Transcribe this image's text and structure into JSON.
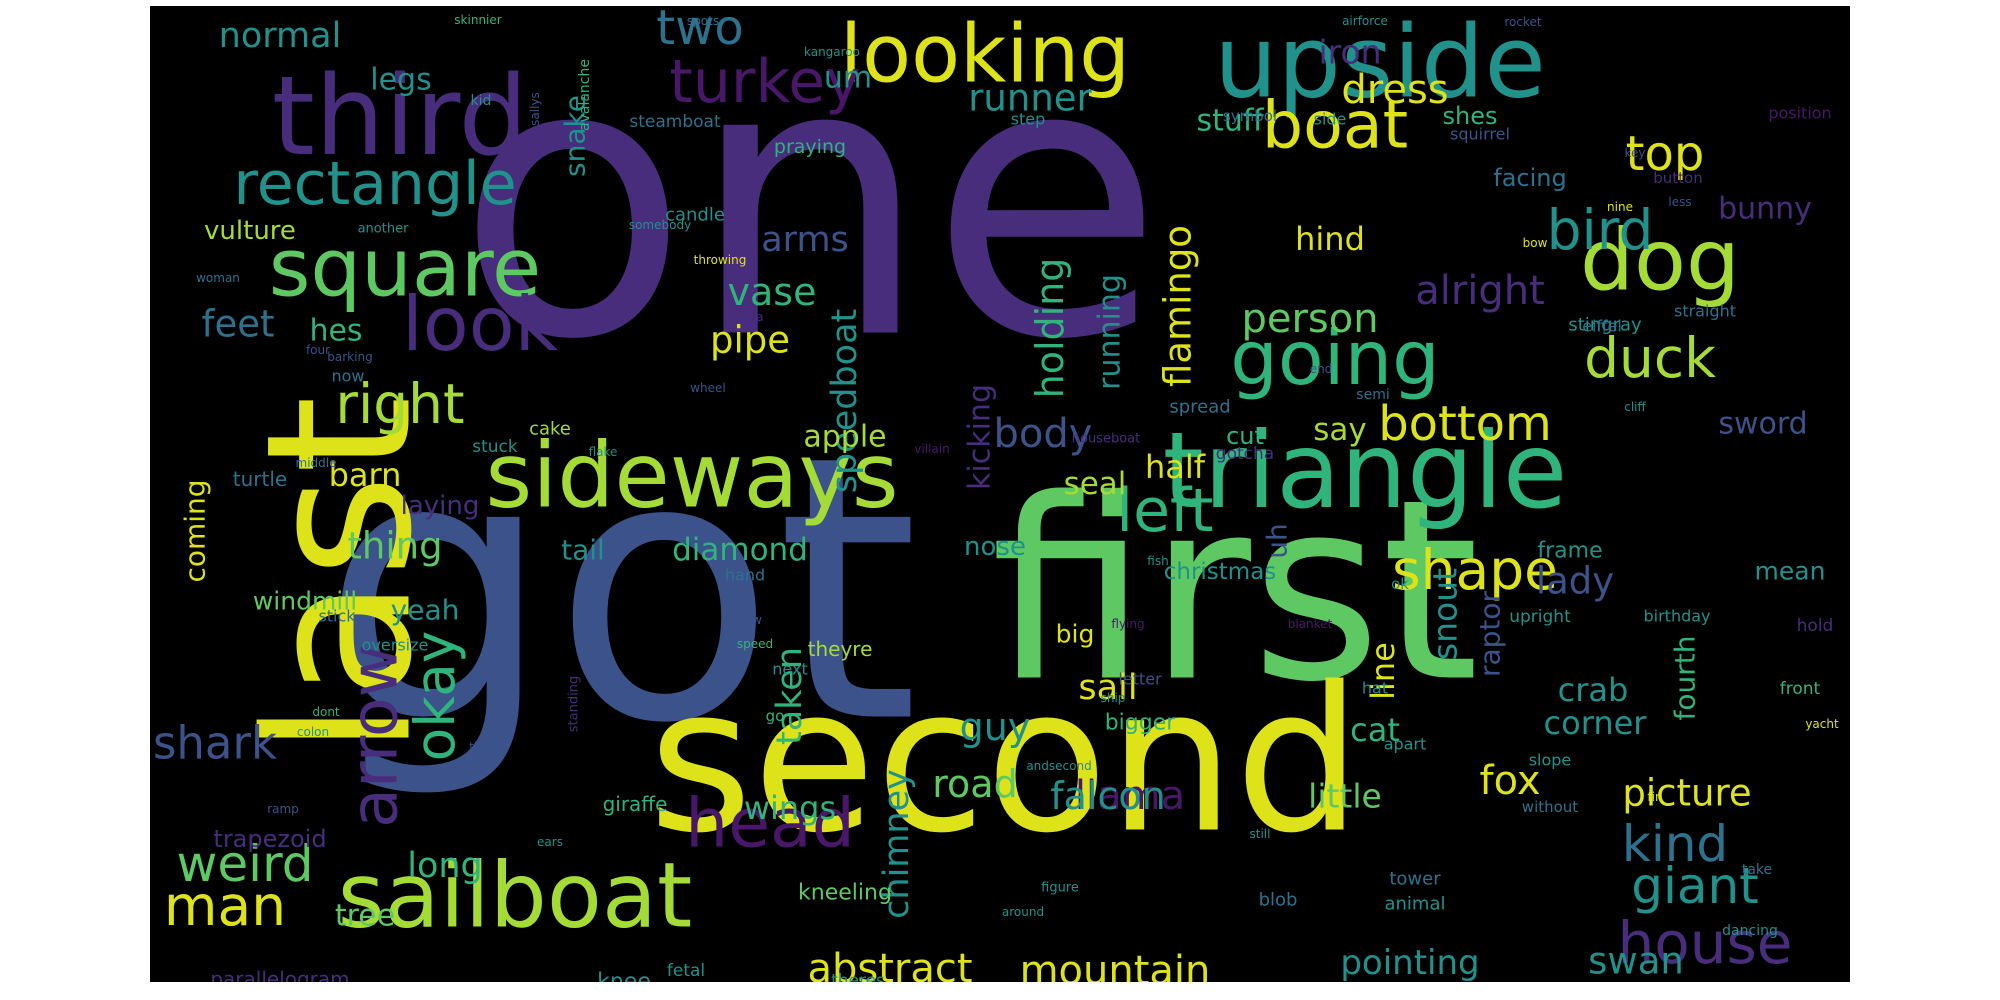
{
  "title": "",
  "palette": {
    "background": "#000000",
    "page": "#ffffff",
    "yellow": "#dde318",
    "lime": "#a5db36",
    "green": "#5ec962",
    "teal_green": "#2fb47c",
    "teal": "#21918c",
    "cyan_blue": "#2c728e",
    "blue": "#3b528b",
    "indigo": "#472d7b",
    "violet": "#481769"
  },
  "words": [
    {
      "text": "one",
      "color": "indigo",
      "weight": 1.0
    },
    {
      "text": "got",
      "color": "blue",
      "weight": 0.93
    },
    {
      "text": "first",
      "color": "green",
      "weight": 0.74
    },
    {
      "text": "second",
      "color": "yellow",
      "weight": 0.66
    },
    {
      "text": "last",
      "color": "yellow",
      "weight": 0.55
    },
    {
      "text": "triangle",
      "color": "teal_green",
      "weight": 0.53
    },
    {
      "text": "upside",
      "color": "teal",
      "weight": 0.5
    },
    {
      "text": "sideways",
      "color": "lime",
      "weight": 0.46
    },
    {
      "text": "third",
      "color": "indigo",
      "weight": 0.46
    },
    {
      "text": "sailboat",
      "color": "lime",
      "weight": 0.43
    },
    {
      "text": "looking",
      "color": "yellow",
      "weight": 0.42
    },
    {
      "text": "square",
      "color": "green",
      "weight": 0.41
    },
    {
      "text": "dog",
      "color": "lime",
      "weight": 0.38
    },
    {
      "text": "rectangle",
      "color": "teal",
      "weight": 0.32
    },
    {
      "text": "look",
      "color": "indigo",
      "weight": 0.32
    },
    {
      "text": "boat",
      "color": "yellow",
      "weight": 0.32
    },
    {
      "text": "going",
      "color": "teal_green",
      "weight": 0.32
    },
    {
      "text": "arrow",
      "color": "indigo",
      "weight": 0.3
    },
    {
      "text": "left",
      "color": "teal_green",
      "weight": 0.3
    },
    {
      "text": "head",
      "color": "violet",
      "weight": 0.3
    },
    {
      "text": "house",
      "color": "indigo",
      "weight": 0.28
    },
    {
      "text": "turkey",
      "color": "violet",
      "weight": 0.28
    },
    {
      "text": "shape",
      "color": "yellow",
      "weight": 0.27
    },
    {
      "text": "okay",
      "color": "teal_green",
      "weight": 0.27
    },
    {
      "text": "right",
      "color": "lime",
      "weight": 0.27
    },
    {
      "text": "bird",
      "color": "teal",
      "weight": 0.27
    },
    {
      "text": "duck",
      "color": "lime",
      "weight": 0.27
    },
    {
      "text": "man",
      "color": "yellow",
      "weight": 0.27
    },
    {
      "text": "weird",
      "color": "green",
      "weight": 0.26
    },
    {
      "text": "kind",
      "color": "cyan_blue",
      "weight": 0.26
    },
    {
      "text": "giant",
      "color": "teal",
      "weight": 0.25
    },
    {
      "text": "bottom",
      "color": "yellow",
      "weight": 0.24
    },
    {
      "text": "shark",
      "color": "blue",
      "weight": 0.23
    },
    {
      "text": "top",
      "color": "yellow",
      "weight": 0.23
    },
    {
      "text": "two",
      "color": "cyan_blue",
      "weight": 0.22
    },
    {
      "text": "person",
      "color": "green",
      "weight": 0.21
    },
    {
      "text": "speedboat",
      "color": "teal",
      "weight": 0.21
    },
    {
      "text": "llama",
      "color": "violet",
      "weight": 0.21
    },
    {
      "text": "abstract",
      "color": "yellow",
      "weight": 0.2
    },
    {
      "text": "mountain",
      "color": "yellow",
      "weight": 0.2
    },
    {
      "text": "dress",
      "color": "yellow",
      "weight": 0.2
    },
    {
      "text": "chimney",
      "color": "teal",
      "weight": 0.2
    },
    {
      "text": "holding",
      "color": "teal_green",
      "weight": 0.2
    },
    {
      "text": "falcon",
      "color": "teal",
      "weight": 0.2
    },
    {
      "text": "road",
      "color": "green",
      "weight": 0.2
    },
    {
      "text": "fox",
      "color": "yellow",
      "weight": 0.19
    },
    {
      "text": "vase",
      "color": "teal_green",
      "weight": 0.19
    },
    {
      "text": "alright",
      "color": "indigo",
      "weight": 0.19
    },
    {
      "text": "body",
      "color": "blue",
      "weight": 0.19
    },
    {
      "text": "picture",
      "color": "yellow",
      "weight": 0.18
    },
    {
      "text": "pointing",
      "color": "teal",
      "weight": 0.18
    },
    {
      "text": "flamingo",
      "color": "yellow",
      "weight": 0.18
    },
    {
      "text": "lady",
      "color": "blue",
      "weight": 0.18
    },
    {
      "text": "runner",
      "color": "teal",
      "weight": 0.18
    },
    {
      "text": "normal",
      "color": "teal",
      "weight": 0.18
    },
    {
      "text": "taken",
      "color": "teal_green",
      "weight": 0.17
    },
    {
      "text": "iron",
      "color": "indigo",
      "weight": 0.17
    },
    {
      "text": "little",
      "color": "green",
      "weight": 0.17
    },
    {
      "text": "pipe",
      "color": "yellow",
      "weight": 0.17
    },
    {
      "text": "guy",
      "color": "teal",
      "weight": 0.17
    },
    {
      "text": "swan",
      "color": "teal",
      "weight": 0.17
    },
    {
      "text": "feet",
      "color": "cyan_blue",
      "weight": 0.17
    },
    {
      "text": "thing",
      "color": "green",
      "weight": 0.17
    },
    {
      "text": "sail",
      "color": "yellow",
      "weight": 0.17
    },
    {
      "text": "hind",
      "color": "yellow",
      "weight": 0.17
    },
    {
      "text": "snout",
      "color": "teal",
      "weight": 0.17
    },
    {
      "text": "long",
      "color": "teal_green",
      "weight": 0.17
    },
    {
      "text": "arms",
      "color": "blue",
      "weight": 0.16
    },
    {
      "text": "running",
      "color": "teal",
      "weight": 0.16
    },
    {
      "text": "kicking",
      "color": "indigo",
      "weight": 0.16
    },
    {
      "text": "tree",
      "color": "green",
      "weight": 0.16
    },
    {
      "text": "seal",
      "color": "lime",
      "weight": 0.16
    },
    {
      "text": "diamond",
      "color": "teal_green",
      "weight": 0.16
    },
    {
      "text": "cat",
      "color": "teal_green",
      "weight": 0.16
    },
    {
      "text": "sword",
      "color": "blue",
      "weight": 0.16
    },
    {
      "text": "bunny",
      "color": "indigo",
      "weight": 0.16
    },
    {
      "text": "line",
      "color": "yellow",
      "weight": 0.16
    },
    {
      "text": "barn",
      "color": "yellow",
      "weight": 0.16
    },
    {
      "text": "say",
      "color": "lime",
      "weight": 0.16
    },
    {
      "text": "half",
      "color": "yellow",
      "weight": 0.16
    },
    {
      "text": "wings",
      "color": "teal_green",
      "weight": 0.16
    },
    {
      "text": "crab",
      "color": "teal",
      "weight": 0.16
    },
    {
      "text": "corner",
      "color": "teal",
      "weight": 0.15
    },
    {
      "text": "legs",
      "color": "teal",
      "weight": 0.15
    },
    {
      "text": "snake",
      "color": "teal",
      "weight": 0.15
    },
    {
      "text": "apple",
      "color": "lime",
      "weight": 0.15
    },
    {
      "text": "hes",
      "color": "teal_green",
      "weight": 0.15
    },
    {
      "text": "stuff",
      "color": "teal_green",
      "weight": 0.15
    },
    {
      "text": "coming",
      "color": "yellow",
      "weight": 0.15
    },
    {
      "text": "uh",
      "color": "blue",
      "weight": 0.15
    },
    {
      "text": "raptor",
      "color": "blue",
      "weight": 0.15
    },
    {
      "text": "fourth",
      "color": "teal_green",
      "weight": 0.14
    },
    {
      "text": "yeah",
      "color": "teal",
      "weight": 0.14
    },
    {
      "text": "um",
      "color": "teal",
      "weight": 0.14
    },
    {
      "text": "zoomed",
      "color": "teal_green",
      "weight": 0.14
    },
    {
      "text": "tail",
      "color": "teal",
      "weight": 0.14
    },
    {
      "text": "vulture",
      "color": "lime",
      "weight": 0.13
    },
    {
      "text": "trapezoid",
      "color": "indigo",
      "weight": 0.13
    },
    {
      "text": "laying",
      "color": "indigo",
      "weight": 0.13
    },
    {
      "text": "facing",
      "color": "cyan_blue",
      "weight": 0.13
    },
    {
      "text": "nose",
      "color": "teal",
      "weight": 0.13
    },
    {
      "text": "mean",
      "color": "teal",
      "weight": 0.13
    },
    {
      "text": "windmill",
      "color": "green",
      "weight": 0.13
    },
    {
      "text": "shes",
      "color": "teal_green",
      "weight": 0.13
    },
    {
      "text": "cut",
      "color": "teal_green",
      "weight": 0.13
    },
    {
      "text": "big",
      "color": "yellow",
      "weight": 0.13
    },
    {
      "text": "christmas",
      "color": "teal",
      "weight": 0.13
    },
    {
      "text": "parallelogram",
      "color": "indigo",
      "weight": 0.12
    },
    {
      "text": "knee",
      "color": "teal",
      "weight": 0.12
    },
    {
      "text": "kneeling",
      "color": "green",
      "weight": 0.12
    },
    {
      "text": "bigger",
      "color": "teal_green",
      "weight": 0.12
    },
    {
      "text": "frame",
      "color": "teal",
      "weight": 0.12
    },
    {
      "text": "praying",
      "color": "teal_green",
      "weight": 0.11
    },
    {
      "text": "theyre",
      "color": "lime",
      "weight": 0.11
    },
    {
      "text": "giraffe",
      "color": "teal_green",
      "weight": 0.11
    },
    {
      "text": "turtle",
      "color": "cyan_blue",
      "weight": 0.11
    },
    {
      "text": "candle",
      "color": "teal",
      "weight": 0.1
    },
    {
      "text": "steamboat",
      "color": "cyan_blue",
      "weight": 0.1
    },
    {
      "text": "stingray",
      "color": "teal",
      "weight": 0.1
    },
    {
      "text": "straight",
      "color": "cyan_blue",
      "weight": 0.1
    },
    {
      "text": "eiffel",
      "color": "cyan_blue",
      "weight": 0.1
    },
    {
      "text": "spread",
      "color": "cyan_blue",
      "weight": 0.1
    },
    {
      "text": "upright",
      "color": "teal",
      "weight": 0.1
    },
    {
      "text": "birthday",
      "color": "teal",
      "weight": 0.1
    },
    {
      "text": "gotcha",
      "color": "indigo",
      "weight": 0.1
    },
    {
      "text": "squirrel",
      "color": "blue",
      "weight": 0.1
    },
    {
      "text": "stuck",
      "color": "teal",
      "weight": 0.1
    },
    {
      "text": "cake",
      "color": "lime",
      "weight": 0.1
    },
    {
      "text": "hand",
      "color": "cyan_blue",
      "weight": 0.1
    },
    {
      "text": "oversize",
      "color": "teal",
      "weight": 0.1
    },
    {
      "text": "tower",
      "color": "cyan_blue",
      "weight": 0.1
    },
    {
      "text": "animal",
      "color": "teal",
      "weight": 0.1
    },
    {
      "text": "blob",
      "color": "cyan_blue",
      "weight": 0.1
    },
    {
      "text": "next",
      "color": "teal",
      "weight": 0.1
    },
    {
      "text": "hat",
      "color": "teal",
      "weight": 0.1
    },
    {
      "text": "apart",
      "color": "teal",
      "weight": 0.1
    },
    {
      "text": "letter",
      "color": "blue",
      "weight": 0.1
    },
    {
      "text": "hold",
      "color": "indigo",
      "weight": 0.1
    },
    {
      "text": "front",
      "color": "teal_green",
      "weight": 0.1
    },
    {
      "text": "slope",
      "color": "teal",
      "weight": 0.1
    },
    {
      "text": "position",
      "color": "violet",
      "weight": 0.09
    },
    {
      "text": "avalanche",
      "color": "teal_green",
      "weight": 0.09
    },
    {
      "text": "step",
      "color": "teal",
      "weight": 0.09
    },
    {
      "text": "symbol",
      "color": "cyan_blue",
      "weight": 0.09
    },
    {
      "text": "side",
      "color": "teal",
      "weight": 0.09
    },
    {
      "text": "button",
      "color": "indigo",
      "weight": 0.09
    },
    {
      "text": "dancing",
      "color": "teal",
      "weight": 0.09
    },
    {
      "text": "figure",
      "color": "teal",
      "weight": 0.09
    },
    {
      "text": "standing",
      "color": "indigo",
      "weight": 0.09
    },
    {
      "text": "without",
      "color": "cyan_blue",
      "weight": 0.09
    },
    {
      "text": "take",
      "color": "cyan_blue",
      "weight": 0.09
    },
    {
      "text": "ok",
      "color": "teal",
      "weight": 0.09
    },
    {
      "text": "go",
      "color": "teal_green",
      "weight": 0.09
    },
    {
      "text": "now",
      "color": "cyan_blue",
      "weight": 0.09
    },
    {
      "text": "stick",
      "color": "cyan_blue",
      "weight": 0.09
    },
    {
      "text": "fetal",
      "color": "teal",
      "weight": 0.09
    },
    {
      "text": "theres",
      "color": "teal",
      "weight": 0.09
    },
    {
      "text": "semi",
      "color": "cyan_blue",
      "weight": 0.08
    },
    {
      "text": "houseboat",
      "color": "indigo",
      "weight": 0.08
    },
    {
      "text": "villain",
      "color": "violet",
      "weight": 0.08
    },
    {
      "text": "another",
      "color": "teal",
      "weight": 0.08
    },
    {
      "text": "somebody",
      "color": "teal",
      "weight": 0.08
    },
    {
      "text": "kangaroo",
      "color": "teal",
      "weight": 0.08
    },
    {
      "text": "airforce",
      "color": "teal",
      "weight": 0.08
    },
    {
      "text": "rocket",
      "color": "blue",
      "weight": 0.08
    },
    {
      "text": "skinnier",
      "color": "teal_green",
      "weight": 0.08
    },
    {
      "text": "spots",
      "color": "cyan_blue",
      "weight": 0.08
    },
    {
      "text": "kid",
      "color": "teal",
      "weight": 0.08
    },
    {
      "text": "sallys",
      "color": "blue",
      "weight": 0.08
    },
    {
      "text": "throwing",
      "color": "yellow",
      "weight": 0.08
    },
    {
      "text": "woman",
      "color": "cyan_blue",
      "weight": 0.08
    },
    {
      "text": "barking",
      "color": "blue",
      "weight": 0.08
    },
    {
      "text": "four",
      "color": "blue",
      "weight": 0.08
    },
    {
      "text": "wheel",
      "color": "blue",
      "weight": 0.08
    },
    {
      "text": "kinda",
      "color": "indigo",
      "weight": 0.08
    },
    {
      "text": "middle",
      "color": "cyan_blue",
      "weight": 0.08
    },
    {
      "text": "flake",
      "color": "teal",
      "weight": 0.08
    },
    {
      "text": "fish",
      "color": "teal",
      "weight": 0.08
    },
    {
      "text": "flying",
      "color": "violet",
      "weight": 0.08
    },
    {
      "text": "blanket",
      "color": "violet",
      "weight": 0.08
    },
    {
      "text": "know",
      "color": "blue",
      "weight": 0.08
    },
    {
      "text": "speed",
      "color": "teal_green",
      "weight": 0.08
    },
    {
      "text": "dont",
      "color": "teal_green",
      "weight": 0.08
    },
    {
      "text": "colon",
      "color": "teal",
      "weight": 0.08
    },
    {
      "text": "three",
      "color": "blue",
      "weight": 0.08
    },
    {
      "text": "ship",
      "color": "teal",
      "weight": 0.08
    },
    {
      "text": "andsecond",
      "color": "teal",
      "weight": 0.08
    },
    {
      "text": "ramp",
      "color": "blue",
      "weight": 0.08
    },
    {
      "text": "ears",
      "color": "teal",
      "weight": 0.08
    },
    {
      "text": "still",
      "color": "teal",
      "weight": 0.08
    },
    {
      "text": "around",
      "color": "teal",
      "weight": 0.08
    },
    {
      "text": "mantis",
      "color": "blue",
      "weight": 0.08
    },
    {
      "text": "yacht",
      "color": "yellow",
      "weight": 0.08
    },
    {
      "text": "fin",
      "color": "yellow",
      "weight": 0.08
    },
    {
      "text": "cliff",
      "color": "teal",
      "weight": 0.08
    },
    {
      "text": "end",
      "color": "blue",
      "weight": 0.08
    },
    {
      "text": "nine",
      "color": "yellow",
      "weight": 0.08
    },
    {
      "text": "less",
      "color": "blue",
      "weight": 0.08
    },
    {
      "text": "bow",
      "color": "yellow",
      "weight": 0.08
    },
    {
      "text": "key",
      "color": "blue",
      "weight": 0.08
    }
  ]
}
